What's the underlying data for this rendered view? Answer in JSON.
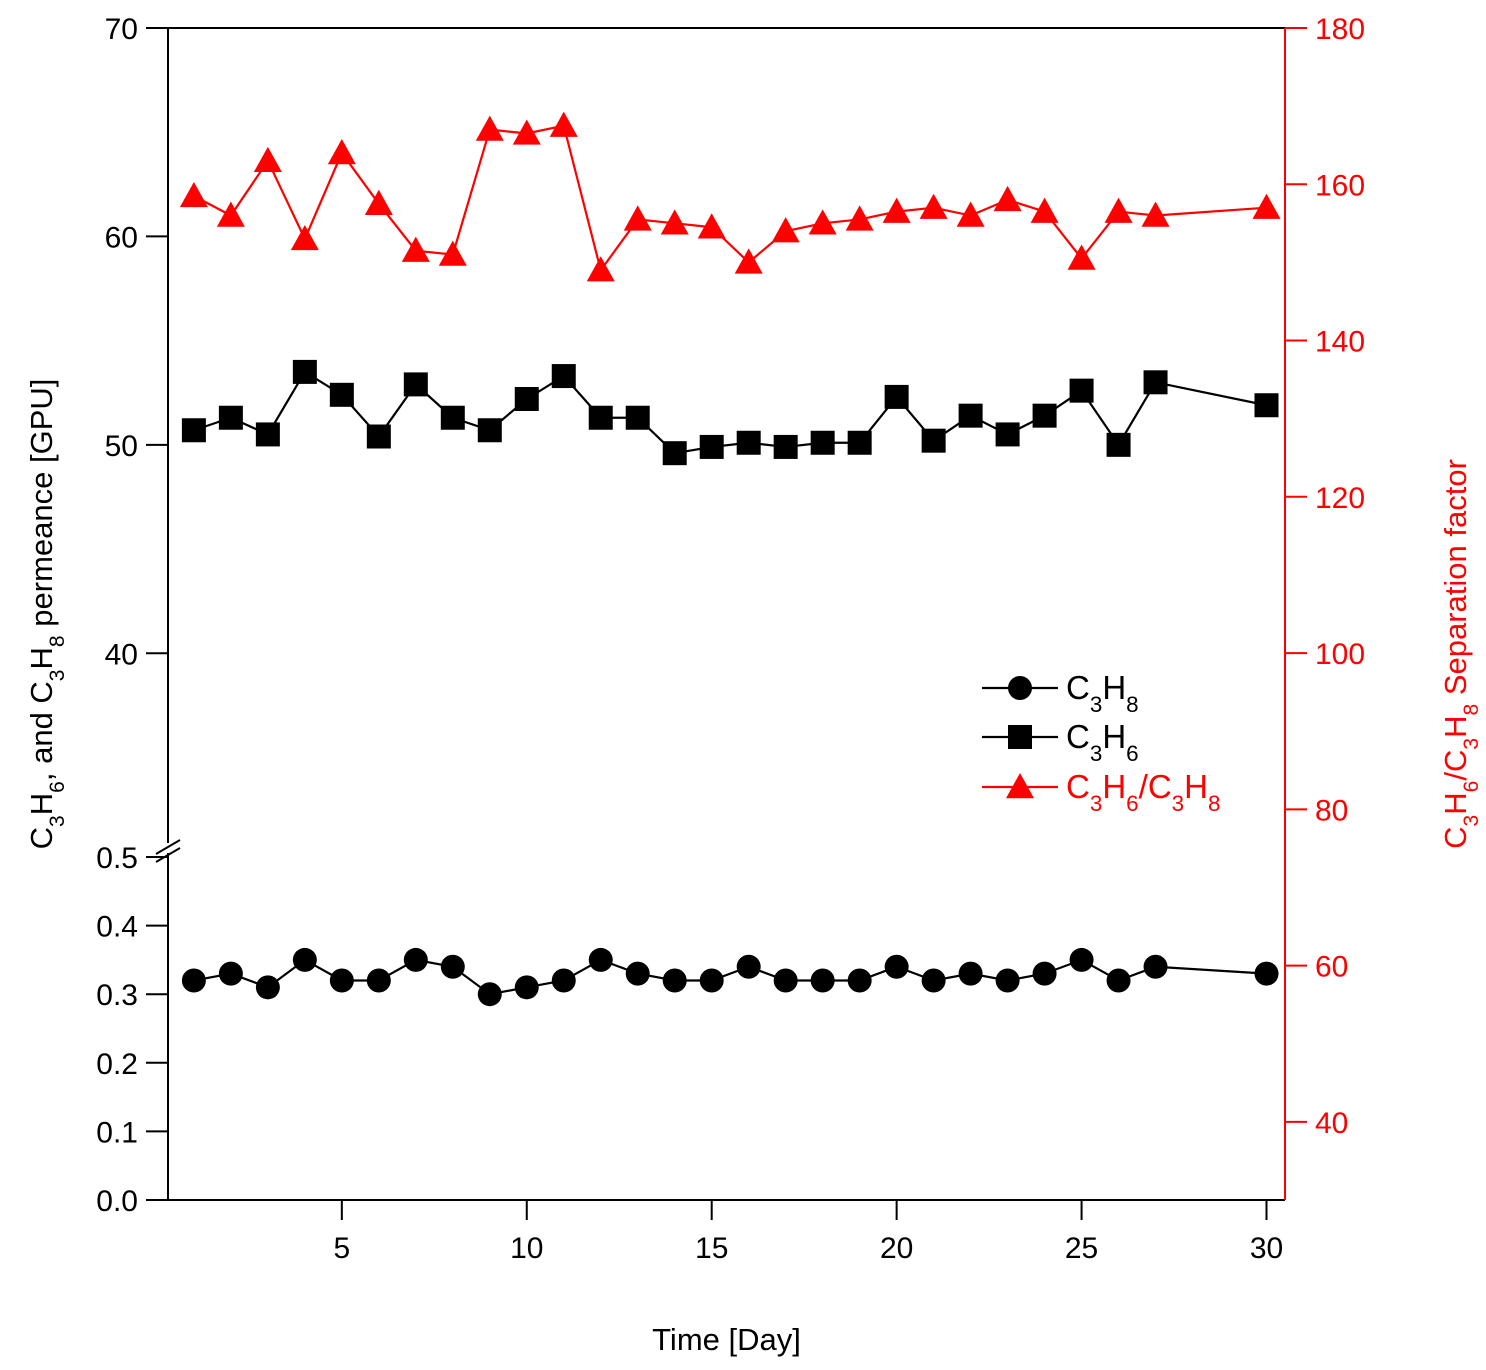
{
  "chart_data": {
    "type": "line",
    "title": "",
    "x": [
      1,
      2,
      3,
      4,
      5,
      6,
      7,
      8,
      9,
      10,
      11,
      12,
      13,
      14,
      15,
      16,
      17,
      18,
      19,
      20,
      21,
      22,
      23,
      24,
      25,
      26,
      27,
      30
    ],
    "xlabel": "Time [Day]",
    "xlim": [
      0.3,
      30.5
    ],
    "xticks": [
      5,
      10,
      15,
      20,
      25,
      30
    ],
    "ylabel_left": {
      "parts": [
        "C",
        "3",
        "H",
        "6",
        ", and C",
        "3",
        "H",
        "8",
        " permeance [GPU]"
      ]
    },
    "ylabel_right": {
      "parts": [
        "C",
        "3",
        "H",
        "6",
        "/C",
        "3",
        "H",
        "8",
        " Separation factor"
      ]
    },
    "left_axis": {
      "broken": true,
      "lower_range": [
        0.0,
        0.5
      ],
      "lower_ticks": [
        "0.0",
        "0.1",
        "0.2",
        "0.3",
        "0.4",
        "0.5"
      ],
      "upper_range": [
        32,
        70
      ],
      "upper_ticks": [
        "40",
        "50",
        "60",
        "70"
      ]
    },
    "right_axis": {
      "range": [
        30,
        180
      ],
      "ticks": [
        "40",
        "60",
        "80",
        "100",
        "120",
        "140",
        "160",
        "180"
      ]
    },
    "series": [
      {
        "name": {
          "parts": [
            "C",
            "3",
            "H",
            "8"
          ]
        },
        "axis": "left-lower",
        "marker": "circle",
        "color": "#000000",
        "values": [
          0.32,
          0.33,
          0.31,
          0.35,
          0.32,
          0.32,
          0.35,
          0.34,
          0.3,
          0.31,
          0.32,
          0.35,
          0.33,
          0.32,
          0.32,
          0.34,
          0.32,
          0.32,
          0.32,
          0.34,
          0.32,
          0.33,
          0.32,
          0.33,
          0.35,
          0.32,
          0.34,
          0.33
        ]
      },
      {
        "name": {
          "parts": [
            "C",
            "3",
            "H",
            "6"
          ]
        },
        "axis": "left-upper",
        "marker": "square",
        "color": "#000000",
        "values": [
          50.7,
          51.3,
          50.5,
          53.5,
          52.4,
          50.4,
          52.9,
          51.3,
          50.7,
          52.2,
          53.3,
          51.3,
          51.3,
          49.6,
          49.9,
          50.1,
          49.9,
          50.1,
          50.1,
          52.3,
          50.2,
          51.4,
          50.5,
          51.4,
          52.6,
          50.0,
          53.0,
          51.9
        ]
      },
      {
        "name": {
          "parts": [
            "C",
            "3",
            "H",
            "6",
            "/C",
            "3",
            "H",
            "8"
          ]
        },
        "axis": "right",
        "marker": "triangle",
        "color": "#ff0000",
        "values": [
          158.5,
          156,
          163,
          153,
          164,
          157.5,
          151.5,
          151,
          167,
          166.5,
          167.5,
          149,
          155.5,
          155,
          154.5,
          150,
          154,
          155,
          155.5,
          156.5,
          157,
          156,
          158,
          156.5,
          150.5,
          156.5,
          156,
          157
        ]
      }
    ],
    "legend": {
      "position": "center-right"
    },
    "grid": false
  }
}
